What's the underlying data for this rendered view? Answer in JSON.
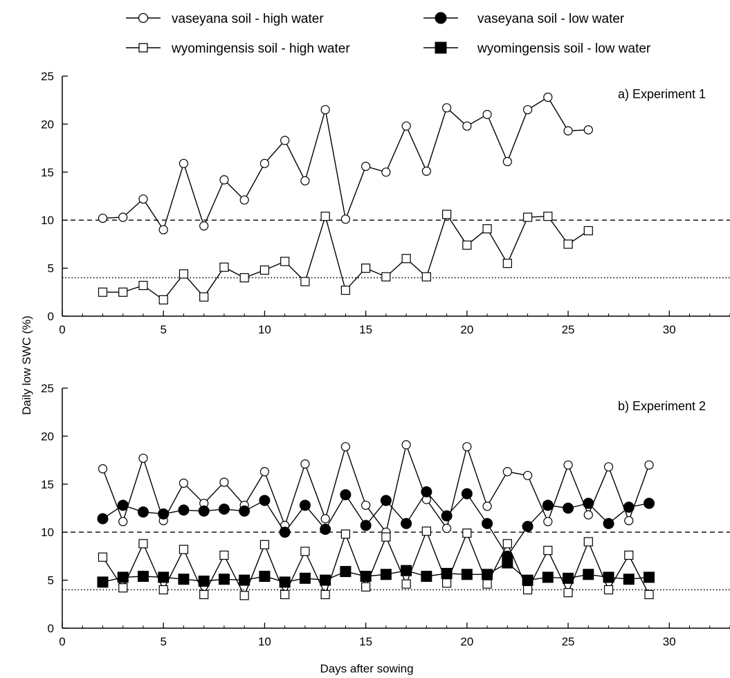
{
  "chart_data": [
    {
      "type": "line",
      "title": "a) Experiment 1",
      "xlim": [
        0,
        33
      ],
      "ylim": [
        0,
        25
      ],
      "xticks": [
        0,
        5,
        10,
        15,
        20,
        25,
        30
      ],
      "yticks": [
        0,
        5,
        10,
        15,
        20,
        25
      ],
      "reference_lines": [
        {
          "style": "dashed",
          "y": 10
        },
        {
          "style": "dotted",
          "y": 4
        }
      ],
      "series": [
        {
          "name": "vaseyana soil - high water",
          "marker": "open-circle",
          "x": [
            2,
            3,
            4,
            5,
            6,
            7,
            8,
            9,
            10,
            11,
            12,
            13,
            14,
            15,
            16,
            17,
            18,
            19,
            20,
            21,
            22,
            23,
            24,
            25,
            26
          ],
          "y": [
            10.2,
            10.3,
            12.2,
            9.0,
            15.9,
            9.4,
            14.2,
            12.1,
            15.9,
            18.3,
            14.1,
            21.5,
            10.1,
            15.6,
            15.0,
            19.8,
            15.1,
            21.7,
            19.8,
            21.0,
            16.1,
            21.5,
            22.8,
            19.3,
            19.4
          ]
        },
        {
          "name": "wyomingensis soil - high water",
          "marker": "open-square",
          "x": [
            2,
            3,
            4,
            5,
            6,
            7,
            8,
            9,
            10,
            11,
            12,
            13,
            14,
            15,
            16,
            17,
            18,
            19,
            20,
            21,
            22,
            23,
            24,
            25,
            26
          ],
          "y": [
            2.5,
            2.5,
            3.2,
            1.7,
            4.4,
            2.0,
            5.1,
            4.0,
            4.8,
            5.7,
            3.6,
            10.4,
            2.7,
            5.0,
            4.1,
            6.0,
            4.1,
            10.6,
            7.4,
            9.1,
            5.5,
            10.3,
            10.4,
            7.5,
            8.9
          ]
        }
      ]
    },
    {
      "type": "line",
      "title": "b) Experiment 2",
      "xlim": [
        0,
        33
      ],
      "ylim": [
        0,
        25
      ],
      "xticks": [
        0,
        5,
        10,
        15,
        20,
        25,
        30
      ],
      "yticks": [
        0,
        5,
        10,
        15,
        20,
        25
      ],
      "reference_lines": [
        {
          "style": "dashed",
          "y": 10
        },
        {
          "style": "dotted",
          "y": 4
        }
      ],
      "series": [
        {
          "name": "vaseyana soil - high water",
          "marker": "open-circle",
          "x": [
            2,
            3,
            4,
            5,
            6,
            7,
            8,
            9,
            10,
            11,
            12,
            13,
            14,
            15,
            16,
            17,
            18,
            19,
            20,
            21,
            22,
            23,
            24,
            25,
            26,
            27,
            28,
            29
          ],
          "y": [
            16.6,
            11.1,
            17.7,
            11.2,
            15.1,
            13.0,
            15.2,
            12.8,
            16.3,
            10.7,
            17.1,
            11.4,
            18.9,
            12.8,
            10.0,
            19.1,
            13.4,
            10.4,
            18.9,
            12.7,
            16.3,
            15.9,
            11.1,
            17.0,
            11.8,
            16.8,
            11.2,
            17.0
          ]
        },
        {
          "name": "vaseyana soil - low water",
          "marker": "filled-circle",
          "x": [
            2,
            3,
            4,
            5,
            6,
            7,
            8,
            9,
            10,
            11,
            12,
            13,
            14,
            15,
            16,
            17,
            18,
            19,
            20,
            21,
            22,
            23,
            24,
            25,
            26,
            27,
            28,
            29
          ],
          "y": [
            11.4,
            12.8,
            12.1,
            11.9,
            12.3,
            12.2,
            12.4,
            12.2,
            13.3,
            10.0,
            12.8,
            10.3,
            13.9,
            10.7,
            13.3,
            10.9,
            14.2,
            11.7,
            14.0,
            10.9,
            7.5,
            10.6,
            12.8,
            12.5,
            13.0,
            10.9,
            12.6,
            13.0
          ]
        },
        {
          "name": "wyomingensis soil - high water",
          "marker": "open-square",
          "x": [
            2,
            3,
            4,
            5,
            6,
            7,
            8,
            9,
            10,
            11,
            12,
            13,
            14,
            15,
            16,
            17,
            18,
            19,
            20,
            21,
            22,
            23,
            24,
            25,
            26,
            27,
            28,
            29
          ],
          "y": [
            7.4,
            4.2,
            8.8,
            4.0,
            8.2,
            3.5,
            7.6,
            3.4,
            8.7,
            3.5,
            8.0,
            3.5,
            9.8,
            4.3,
            9.5,
            4.6,
            10.1,
            4.7,
            9.9,
            4.6,
            8.8,
            4.0,
            8.1,
            3.7,
            9.0,
            4.0,
            7.6,
            3.5
          ]
        },
        {
          "name": "wyomingensis soil - low water",
          "marker": "filled-square",
          "x": [
            2,
            3,
            4,
            5,
            6,
            7,
            8,
            9,
            10,
            11,
            12,
            13,
            14,
            15,
            16,
            17,
            18,
            19,
            20,
            21,
            22,
            23,
            24,
            25,
            26,
            27,
            28,
            29
          ],
          "y": [
            4.8,
            5.3,
            5.4,
            5.3,
            5.1,
            4.9,
            5.1,
            5.0,
            5.4,
            4.8,
            5.2,
            5.0,
            5.9,
            5.4,
            5.6,
            6.0,
            5.4,
            5.7,
            5.6,
            5.6,
            6.8,
            5.0,
            5.3,
            5.2,
            5.6,
            5.3,
            5.1,
            5.3
          ]
        }
      ]
    }
  ],
  "shared": {
    "ylabel": "Daily low SWC (%)",
    "xlabel": "Days after sowing"
  },
  "legend": {
    "placement": "top",
    "entries": [
      {
        "label": "vaseyana soil - high water",
        "marker": "open-circle"
      },
      {
        "label": "vaseyana soil - low water",
        "marker": "filled-circle"
      },
      {
        "label": "wyomingensis soil - high water",
        "marker": "open-square"
      },
      {
        "label": "wyomingensis soil - low water",
        "marker": "filled-square"
      }
    ]
  }
}
